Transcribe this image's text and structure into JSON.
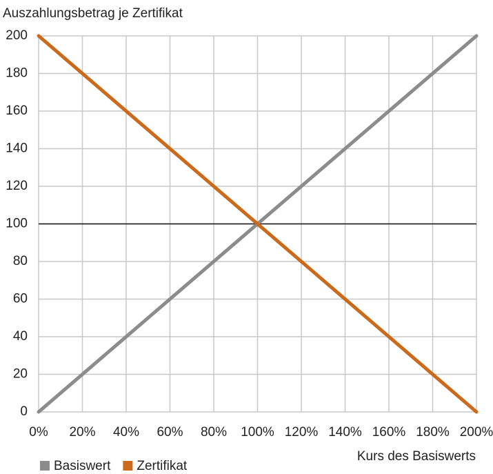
{
  "chart_data": {
    "type": "line",
    "title": "Auszahlungsbetrag je Zertifikat",
    "x_label": "Kurs des Basiswerts",
    "x": [
      0,
      200
    ],
    "series": [
      {
        "name": "Basiswert",
        "color": "#8c8c8c",
        "values": [
          0,
          200
        ]
      },
      {
        "name": "Zertifikat",
        "color": "#cc6a1c",
        "values": [
          200,
          0
        ]
      }
    ],
    "xlim": [
      0,
      200
    ],
    "xticks": [
      {
        "value": 0,
        "label": "0%"
      },
      {
        "value": 20,
        "label": "20%"
      },
      {
        "value": 40,
        "label": "40%"
      },
      {
        "value": 60,
        "label": "60%"
      },
      {
        "value": 80,
        "label": "80%"
      },
      {
        "value": 100,
        "label": "100%"
      },
      {
        "value": 120,
        "label": "120%"
      },
      {
        "value": 140,
        "label": "140%"
      },
      {
        "value": 160,
        "label": "160%"
      },
      {
        "value": 180,
        "label": "180%"
      },
      {
        "value": 200,
        "label": "200%"
      }
    ],
    "ylim": [
      0,
      200
    ],
    "yticks": [
      0,
      20,
      40,
      60,
      80,
      100,
      120,
      140,
      160,
      180,
      200
    ],
    "reference_line": 100,
    "grid": true,
    "legend": "bottom-left"
  }
}
